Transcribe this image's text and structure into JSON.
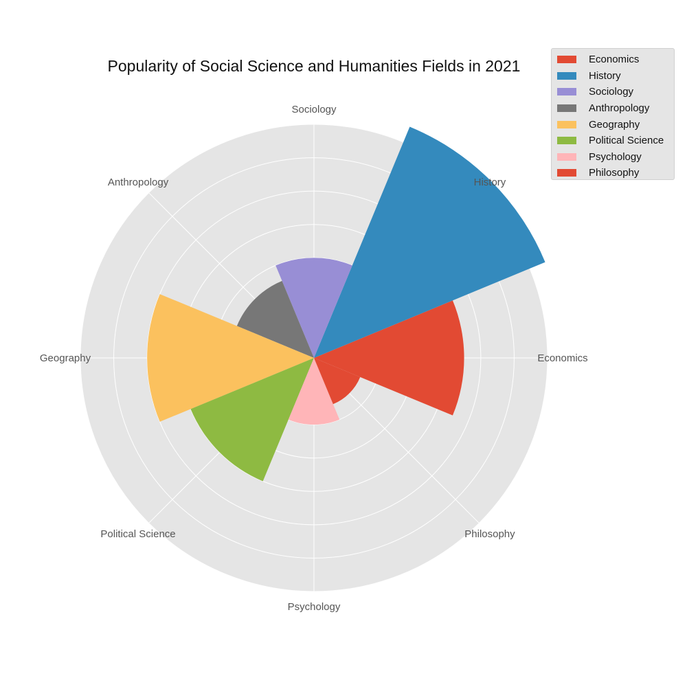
{
  "chart_data": {
    "type": "polar-bar",
    "title": "Popularity of Social Science and Humanities Fields in 2021",
    "categories": [
      "Economics",
      "History",
      "Sociology",
      "Anthropology",
      "Geography",
      "Political Science",
      "Psychology",
      "Philosophy"
    ],
    "series": [
      {
        "name": "Economics",
        "value": 45,
        "color": "#E24A33"
      },
      {
        "name": "History",
        "value": 75,
        "color": "#348ABD"
      },
      {
        "name": "Sociology",
        "value": 30,
        "color": "#988ED5"
      },
      {
        "name": "Anthropology",
        "value": 25,
        "color": "#777777"
      },
      {
        "name": "Geography",
        "value": 50,
        "color": "#FBC15E"
      },
      {
        "name": "Political Science",
        "value": 40,
        "color": "#8EBA42"
      },
      {
        "name": "Psychology",
        "value": 20,
        "color": "#FFB5B8"
      },
      {
        "name": "Philosophy",
        "value": 15,
        "color": "#E24A33"
      }
    ],
    "rlim": [
      0,
      70
    ],
    "grid": true,
    "legend_position": "top-right"
  }
}
